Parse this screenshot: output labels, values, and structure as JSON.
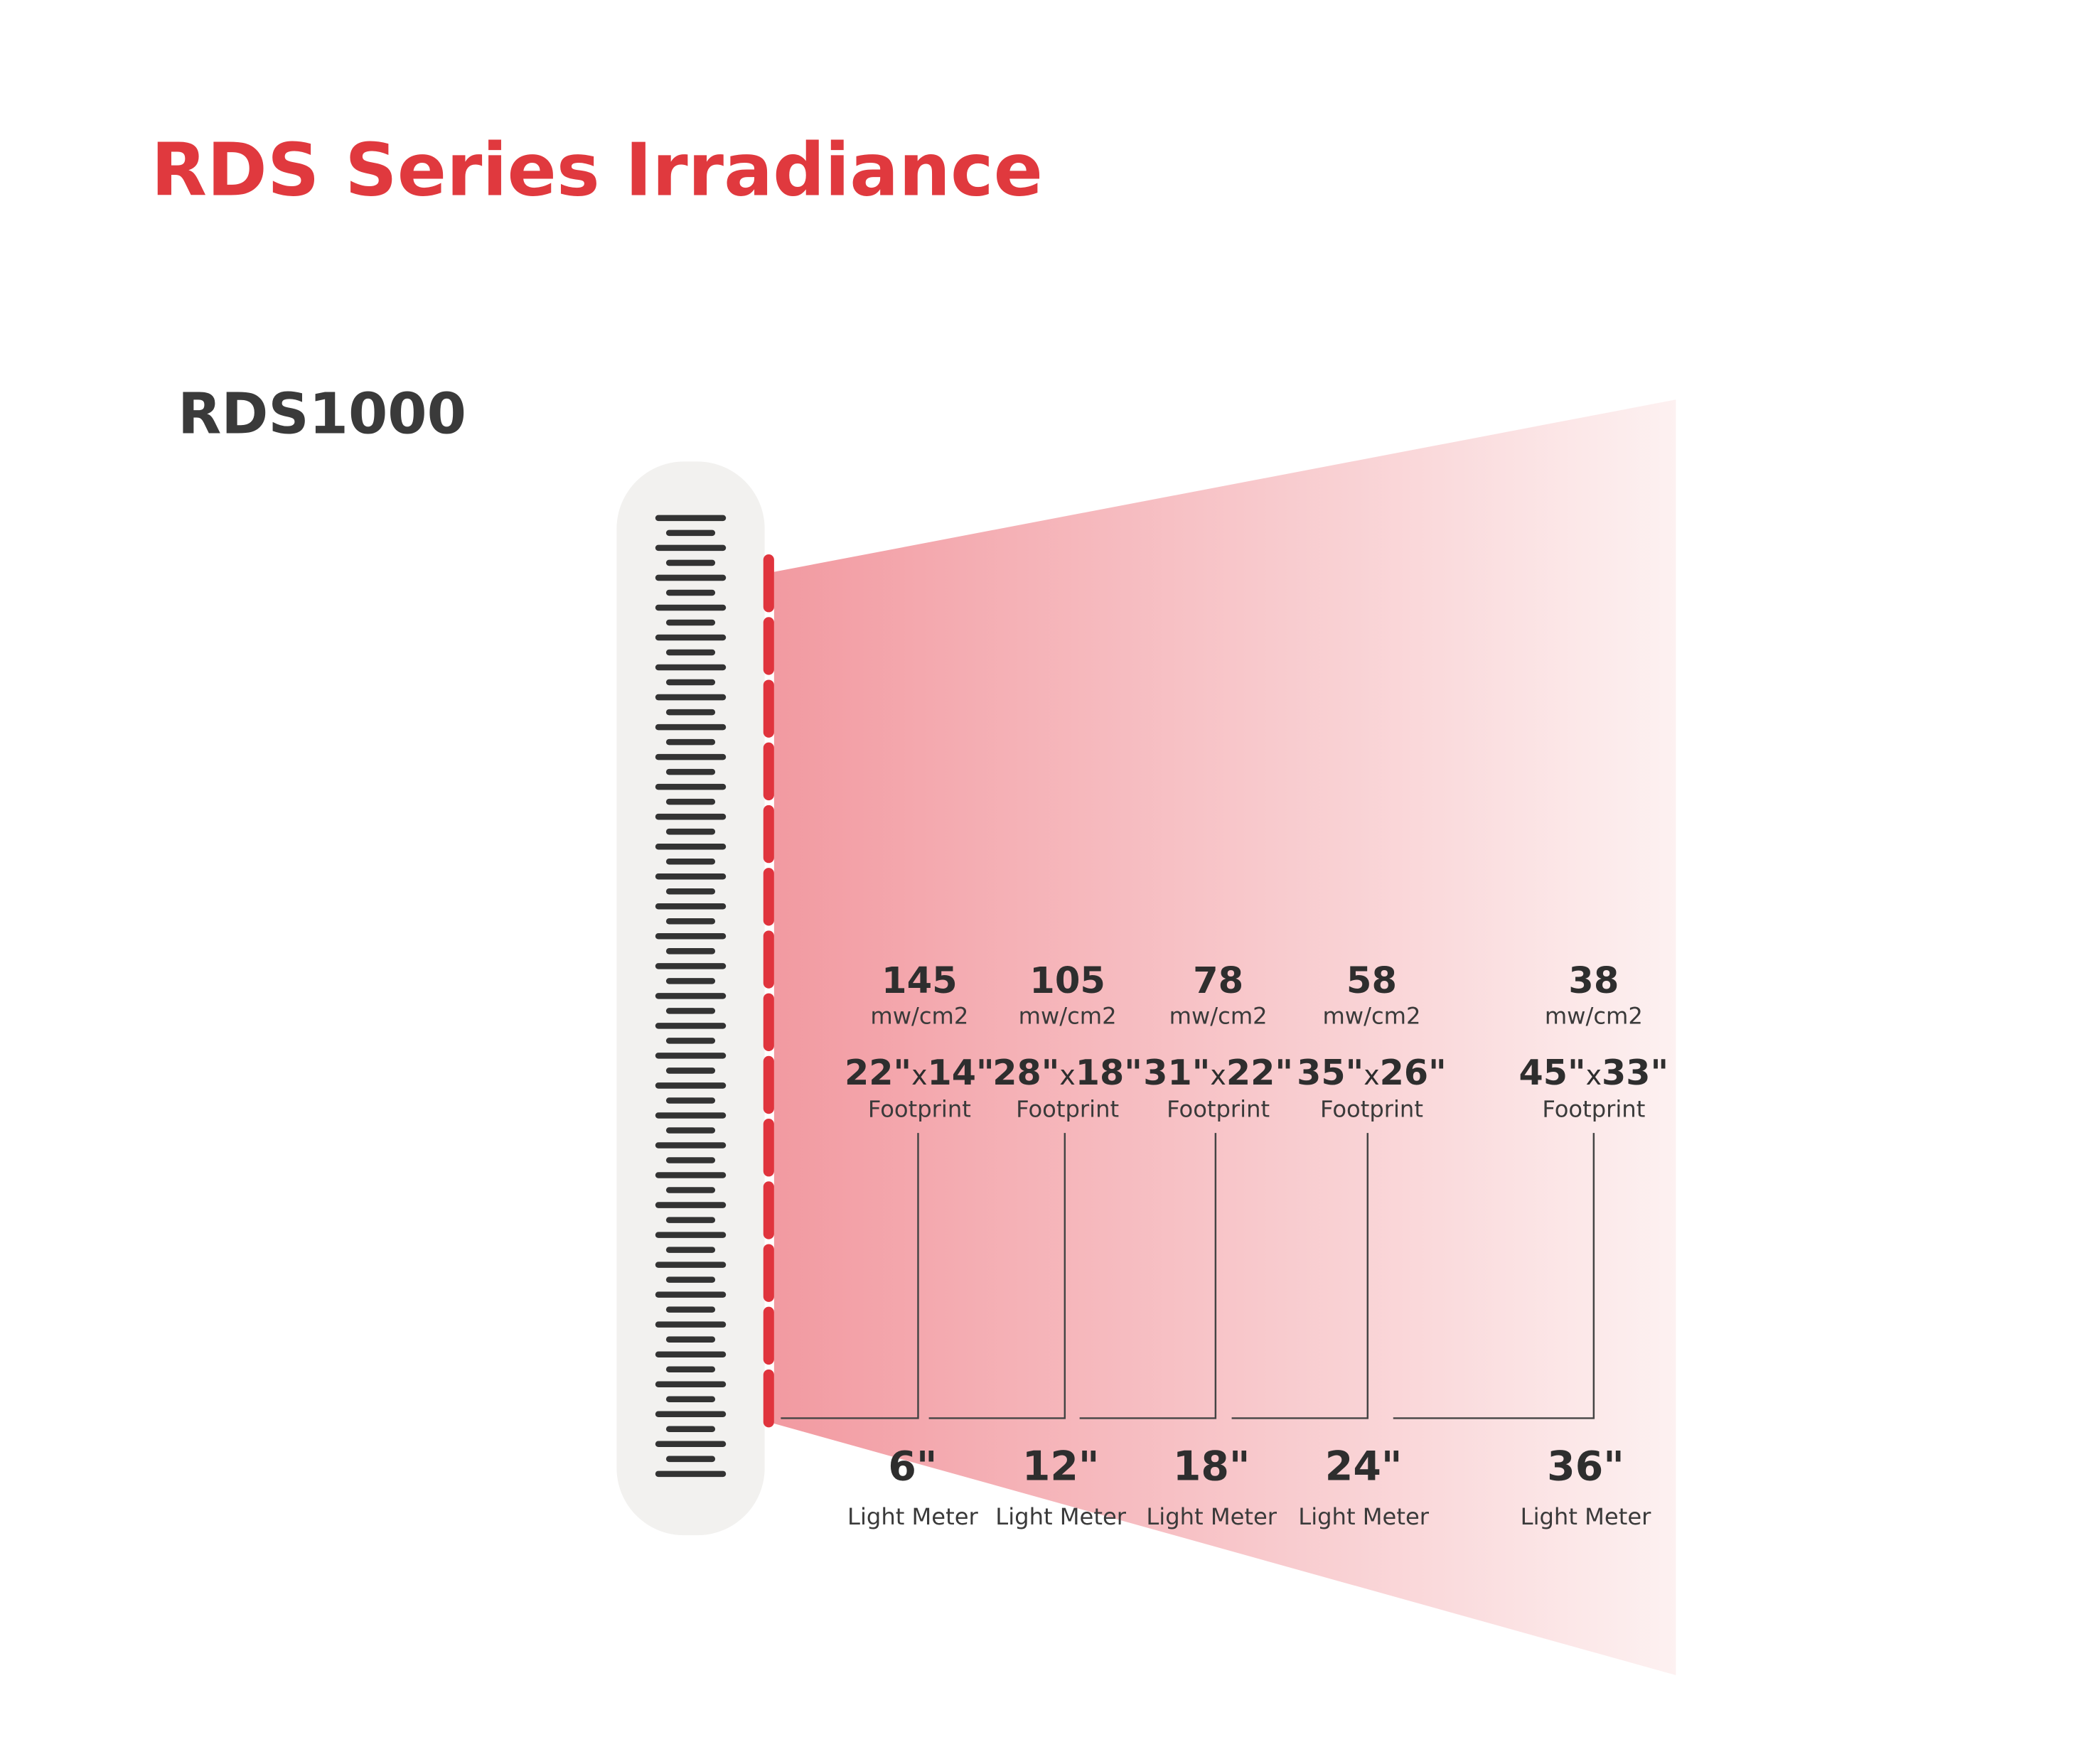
{
  "header": {
    "title": "RDS Series Irradiance",
    "model": "RDS1000"
  },
  "measurements": [
    {
      "irradiance": 145,
      "unit": "mw/cm2",
      "footprint": {
        "width": "22\"",
        "by": "x",
        "height": "14\""
      },
      "footprint_label": "Footprint",
      "distance": "6\"",
      "distance_label": "Light Meter"
    },
    {
      "irradiance": 105,
      "unit": "mw/cm2",
      "footprint": {
        "width": "28\"",
        "by": "x",
        "height": "18\""
      },
      "footprint_label": "Footprint",
      "distance": "12\"",
      "distance_label": "Light Meter"
    },
    {
      "irradiance": 78,
      "unit": "mw/cm2",
      "footprint": {
        "width": "31\"",
        "by": "x",
        "height": "22\""
      },
      "footprint_label": "Footprint",
      "distance": "18\"",
      "distance_label": "Light Meter"
    },
    {
      "irradiance": 58,
      "unit": "mw/cm2",
      "footprint": {
        "width": "35\"",
        "by": "x",
        "height": "26\""
      },
      "footprint_label": "Footprint",
      "distance": "24\"",
      "distance_label": "Light Meter"
    },
    {
      "irradiance": 38,
      "unit": "mw/cm2",
      "footprint": {
        "width": "45\"",
        "by": "x",
        "height": "33\""
      },
      "footprint_label": "Footprint",
      "distance": "36\"",
      "distance_label": "Light Meter"
    }
  ]
}
